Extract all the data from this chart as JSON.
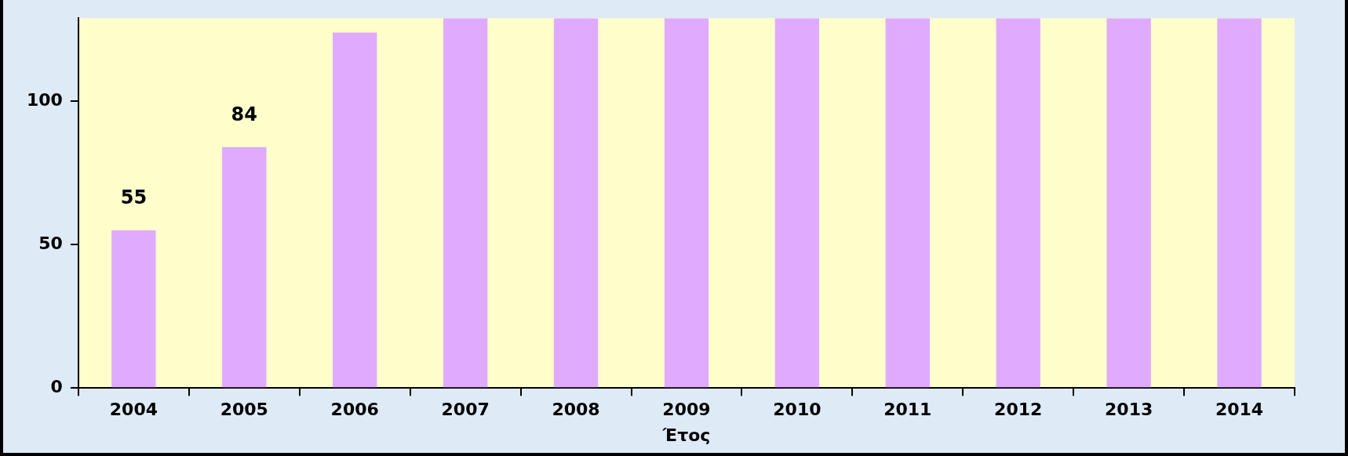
{
  "chart_data": {
    "type": "bar",
    "xlabel": "Έτος",
    "categories": [
      "2004",
      "2005",
      "2006",
      "2007",
      "2008",
      "2009",
      "2010",
      "2011",
      "2012",
      "2013",
      "2014"
    ],
    "series": [
      {
        "color": "#e0aaff",
        "values": [
          55,
          84,
          124,
          129,
          129,
          129,
          129,
          129,
          129,
          129,
          129
        ],
        "value_labels": [
          "55",
          "84",
          null,
          null,
          null,
          null,
          null,
          null,
          null,
          null,
          null
        ]
      }
    ],
    "ylim": [
      0,
      129
    ],
    "yticks": [
      0,
      50,
      100
    ],
    "grid": false,
    "legend": false
  }
}
